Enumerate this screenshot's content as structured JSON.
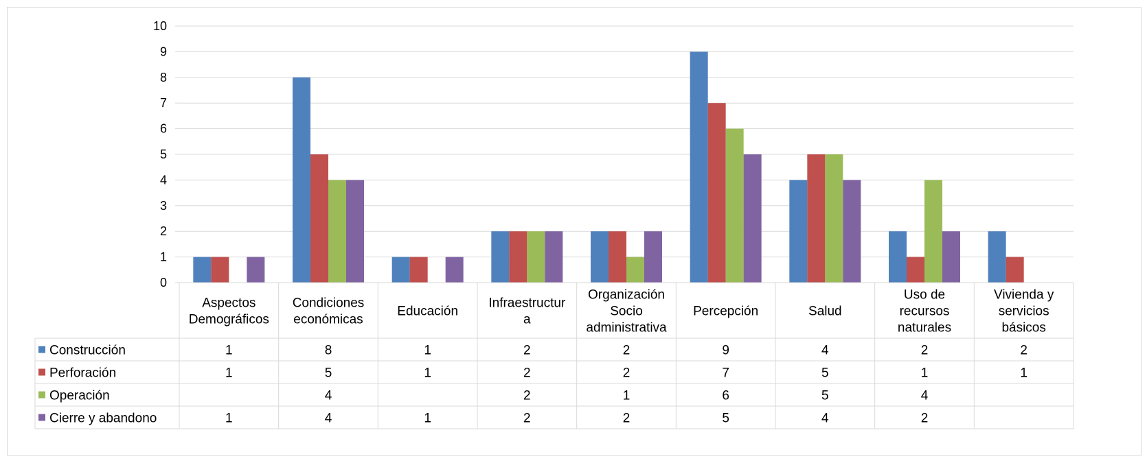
{
  "chart_data": {
    "type": "bar",
    "title": "",
    "xlabel": "",
    "ylabel": "",
    "ylim": [
      0,
      10
    ],
    "yticks": [
      0,
      1,
      2,
      3,
      4,
      5,
      6,
      7,
      8,
      9,
      10
    ],
    "grid": true,
    "legend": "data-table-left",
    "categories": [
      [
        "Aspectos",
        "Demográficos"
      ],
      [
        "Condiciones",
        "económicas"
      ],
      [
        "Educación"
      ],
      [
        "Infraestructur",
        "a"
      ],
      [
        "Organización",
        "Socio",
        "administrativa"
      ],
      [
        "Percepción"
      ],
      [
        "Salud"
      ],
      [
        "Uso de",
        "recursos",
        "naturales"
      ],
      [
        "Vivienda y",
        "servicios",
        "básicos"
      ]
    ],
    "series": [
      {
        "name": "Construcción",
        "color": "#4F81BD",
        "values": [
          1,
          8,
          1,
          2,
          2,
          9,
          4,
          2,
          2
        ]
      },
      {
        "name": "Perforación",
        "color": "#C0504D",
        "values": [
          1,
          5,
          1,
          2,
          2,
          7,
          5,
          1,
          1
        ]
      },
      {
        "name": "Operación",
        "color": "#9BBB59",
        "values": [
          null,
          4,
          null,
          2,
          1,
          6,
          5,
          4,
          null
        ]
      },
      {
        "name": "Cierre y abandono",
        "color": "#8064A2",
        "values": [
          1,
          4,
          1,
          2,
          2,
          5,
          4,
          2,
          null
        ]
      }
    ]
  }
}
